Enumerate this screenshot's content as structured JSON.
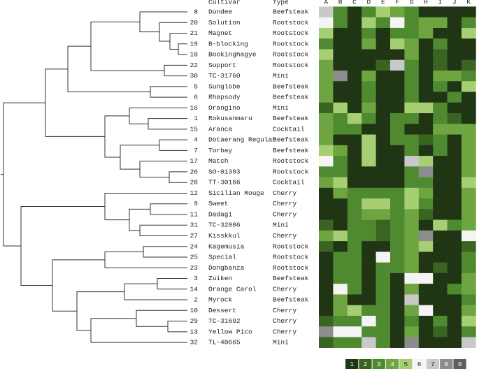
{
  "chart_data": {
    "type": "heatmap",
    "header": {
      "number": "",
      "cultivar": "Cultivar",
      "type": "Type"
    },
    "columns": [
      "A",
      "B",
      "C",
      "D",
      "E",
      "F",
      "G",
      "H",
      "I",
      "J",
      "K"
    ],
    "numbers": [
      8,
      20,
      21,
      19,
      18,
      22,
      30,
      5,
      6,
      16,
      1,
      15,
      4,
      7,
      17,
      26,
      28,
      12,
      9,
      11,
      31,
      27,
      24,
      25,
      23,
      3,
      14,
      2,
      10,
      29,
      13,
      32
    ],
    "cultivars": [
      "Dundee",
      "Solution",
      "Magnet",
      "B-blocking",
      "Bookinghagye",
      "Support",
      "TC-31760",
      "Sunglobe",
      "Rhapsody",
      "Orangino",
      "Rokusanmaru",
      "Aranca",
      "Dotaerang Regular",
      "Torbay",
      "Match",
      "SO-01393",
      "TT-30166",
      "Sicilian Rouge",
      "Sweet",
      "Dadagi",
      "TC-32086",
      "Kisskkul",
      "Kagemusia",
      "Special",
      "Dongbanza",
      "Zuiken",
      "Orange Carol",
      "Myrock",
      "Dessert",
      "TC-31692",
      "Yellow Pico",
      "TL-40665"
    ],
    "types": [
      "Beefsteak",
      "Rootstock",
      "Rootstock",
      "Rootstock",
      "Rootstock",
      "Rootstock",
      "Mini",
      "Beefsteak",
      "Beefsteak",
      "Mini",
      "Beefsteak",
      "Cocktail",
      "Beefsteak",
      "Beefsteak",
      "Rootstock",
      "Rootstock",
      "Cocktail",
      "Cherry",
      "Cherry",
      "Cherry",
      "Mini",
      "Cherry",
      "Rootstock",
      "Rootstock",
      "Rootstock",
      "Beefsteak",
      "Cherry",
      "Beefsteak",
      "Cherry",
      "Cherry",
      "Cherry",
      "Mini"
    ],
    "values": [
      [
        7,
        3,
        1,
        3,
        5,
        4,
        3,
        1,
        1,
        1,
        1
      ],
      [
        6,
        3,
        1,
        5,
        3,
        6,
        3,
        4,
        4,
        1,
        3
      ],
      [
        5,
        1,
        1,
        3,
        1,
        3,
        3,
        4,
        1,
        1,
        5
      ],
      [
        3,
        1,
        1,
        4,
        1,
        5,
        4,
        1,
        3,
        1,
        1
      ],
      [
        5,
        1,
        1,
        1,
        1,
        1,
        4,
        1,
        2,
        1,
        1
      ],
      [
        4,
        1,
        1,
        1,
        2,
        7,
        3,
        1,
        2,
        1,
        2
      ],
      [
        4,
        8,
        1,
        4,
        1,
        1,
        3,
        1,
        4,
        4,
        3
      ],
      [
        4,
        1,
        1,
        3,
        1,
        1,
        3,
        1,
        3,
        1,
        5
      ],
      [
        4,
        1,
        1,
        3,
        1,
        1,
        3,
        1,
        1,
        3,
        1
      ],
      [
        2,
        5,
        1,
        4,
        1,
        1,
        5,
        5,
        3,
        1,
        1
      ],
      [
        4,
        3,
        5,
        3,
        1,
        3,
        3,
        1,
        3,
        2,
        1
      ],
      [
        4,
        3,
        3,
        1,
        1,
        3,
        1,
        1,
        4,
        4,
        4
      ],
      [
        4,
        1,
        1,
        5,
        1,
        3,
        3,
        2,
        3,
        1,
        4
      ],
      [
        5,
        4,
        1,
        5,
        1,
        1,
        3,
        1,
        3,
        1,
        4
      ],
      [
        6,
        3,
        1,
        5,
        1,
        1,
        7,
        5,
        1,
        1,
        4
      ],
      [
        3,
        3,
        1,
        1,
        1,
        1,
        3,
        8,
        1,
        1,
        4
      ],
      [
        4,
        5,
        1,
        1,
        1,
        1,
        3,
        3,
        1,
        1,
        5
      ],
      [
        1,
        4,
        3,
        3,
        3,
        3,
        5,
        4,
        1,
        1,
        4
      ],
      [
        1,
        1,
        3,
        5,
        5,
        3,
        5,
        3,
        1,
        1,
        4
      ],
      [
        1,
        1,
        3,
        4,
        4,
        3,
        4,
        2,
        1,
        1,
        4
      ],
      [
        2,
        1,
        3,
        3,
        2,
        3,
        4,
        1,
        5,
        3,
        4
      ],
      [
        4,
        5,
        3,
        3,
        2,
        3,
        4,
        8,
        1,
        1,
        6
      ],
      [
        2,
        1,
        3,
        1,
        1,
        3,
        4,
        5,
        1,
        1,
        2
      ],
      [
        1,
        3,
        3,
        1,
        6,
        3,
        4,
        1,
        1,
        1,
        3
      ],
      [
        1,
        3,
        3,
        1,
        3,
        3,
        4,
        1,
        2,
        1,
        3
      ],
      [
        1,
        3,
        3,
        1,
        3,
        1,
        6,
        6,
        1,
        1,
        4
      ],
      [
        1,
        6,
        3,
        1,
        3,
        1,
        4,
        1,
        1,
        3,
        4
      ],
      [
        1,
        4,
        1,
        1,
        3,
        1,
        7,
        1,
        1,
        1,
        3
      ],
      [
        1,
        4,
        5,
        3,
        3,
        1,
        4,
        6,
        1,
        1,
        4
      ],
      [
        2,
        3,
        3,
        6,
        3,
        1,
        3,
        1,
        3,
        1,
        5
      ],
      [
        8,
        6,
        6,
        3,
        3,
        1,
        4,
        1,
        2,
        1,
        3
      ],
      [
        2,
        3,
        3,
        7,
        3,
        1,
        8,
        1,
        1,
        1,
        7
      ]
    ],
    "legend": [
      1,
      2,
      3,
      4,
      5,
      6,
      7,
      8,
      9
    ],
    "colors": [
      "#1f3514",
      "#3a6422",
      "#4f8a31",
      "#6fa540",
      "#a6cf74",
      "#f4f4f4",
      "#c9c9c9",
      "#8c8c8c",
      "#5e5e5e"
    ]
  }
}
